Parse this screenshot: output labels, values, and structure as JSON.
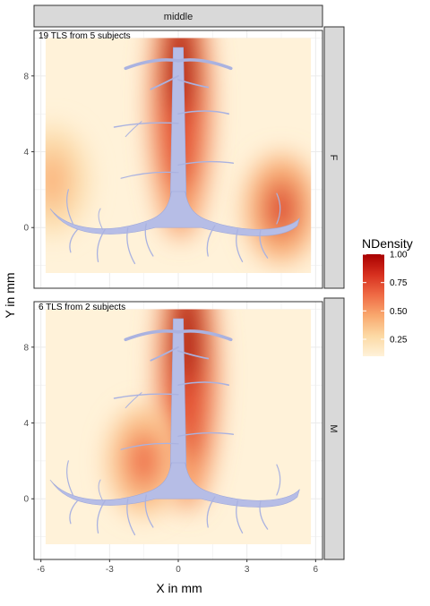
{
  "chart_data": {
    "type": "heatmap",
    "column_strip": "middle",
    "xlabel": "X in mm",
    "ylabel": "Y in mm",
    "xlim": [
      -6.3,
      6.3
    ],
    "ylim": [
      -3.2,
      10.4
    ],
    "x_ticks": [
      -6,
      -3,
      0,
      3,
      6
    ],
    "x_tick_labels": [
      "-6",
      "-3",
      "0",
      "3",
      "6"
    ],
    "y_ticks": [
      0,
      4,
      8
    ],
    "y_tick_labels": [
      "0",
      "4",
      "8"
    ],
    "grid": true,
    "legend": {
      "title": "NDensity",
      "placement": "right",
      "ticks": [
        0.25,
        0.5,
        0.75,
        1.0
      ],
      "tick_labels": [
        "0.25",
        "0.50",
        "0.75",
        "1.00"
      ],
      "colors": [
        "#fff2d9",
        "#fcd9a4",
        "#f9a86e",
        "#ef6b45",
        "#d7301f",
        "#a80000"
      ]
    },
    "panels": [
      {
        "row_strip": "F",
        "annotation": "19 TLS from 5 subjects",
        "density_peaks": [
          {
            "x": 0.1,
            "y": 8.5,
            "value": 1.0
          },
          {
            "x": 4.5,
            "y": 1.0,
            "value": 0.75
          },
          {
            "x": -5.5,
            "y": 2.5,
            "value": 0.35
          }
        ]
      },
      {
        "row_strip": "M",
        "annotation": "6 TLS from 2 subjects",
        "density_peaks": [
          {
            "x": 0.4,
            "y": 8.5,
            "value": 1.0
          },
          {
            "x": -1.5,
            "y": 2.0,
            "value": 0.6
          }
        ]
      }
    ]
  }
}
